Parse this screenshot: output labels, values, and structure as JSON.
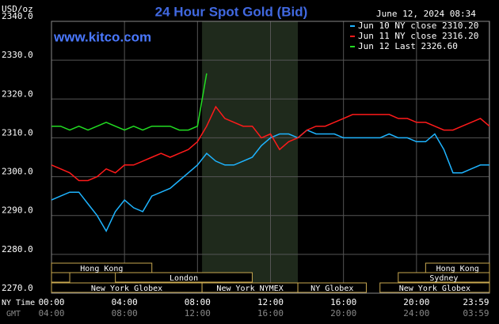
{
  "chart_data": {
    "type": "line",
    "title": "24 Hour Spot Gold (Bid)",
    "subtitle": "June 12, 2024 08:34",
    "y_label": "USD/oz",
    "source": "www.kitco.com",
    "x_label": "NY Time",
    "x2_label": "GMT",
    "x2_tick_labels": [
      "04:00",
      "08:00",
      "12:00",
      "16:00",
      "20:00",
      "24:00",
      "03:59"
    ],
    "xlim": [
      0,
      24
    ],
    "xticks": [
      {
        "value": 0,
        "label": "00:00"
      },
      {
        "value": 4,
        "label": "04:00"
      },
      {
        "value": 8,
        "label": "08:00"
      },
      {
        "value": 12,
        "label": "12:00"
      },
      {
        "value": 16,
        "label": "16:00"
      },
      {
        "value": 20,
        "label": "20:00"
      },
      {
        "value": 23.98,
        "label": "23:59"
      }
    ],
    "ylim": [
      2270,
      2340
    ],
    "yticks": [
      {
        "value": 2270,
        "label": "2270.0"
      },
      {
        "value": 2280,
        "label": "2280.0"
      },
      {
        "value": 2290,
        "label": "2290.0"
      },
      {
        "value": 2300,
        "label": "2300.0"
      },
      {
        "value": 2310,
        "label": "2310.0"
      },
      {
        "value": 2320,
        "label": "2320.0"
      },
      {
        "value": 2330,
        "label": "2330.0"
      },
      {
        "value": 2340,
        "label": "2340.0"
      }
    ],
    "grid": true,
    "x": [
      0,
      0.5,
      1,
      1.5,
      2,
      2.5,
      3,
      3.5,
      4,
      4.5,
      5,
      5.5,
      6,
      6.5,
      7,
      7.5,
      8,
      8.5,
      9,
      9.5,
      10,
      10.5,
      11,
      11.5,
      12,
      12.5,
      13,
      13.5,
      14,
      14.5,
      15,
      15.5,
      16,
      16.5,
      17,
      17.5,
      18,
      18.5,
      19,
      19.5,
      20,
      20.5,
      21,
      21.5,
      22,
      22.5,
      23,
      23.5,
      24
    ],
    "series": [
      {
        "name": "Jun 10 NY close 2310.20",
        "color": "#1eb4ff",
        "values": [
          2294,
          2295,
          2296,
          2296,
          2293,
          2290,
          2286,
          2291,
          2294,
          2292,
          2291,
          2295,
          2296,
          2297,
          2299,
          2301,
          2303,
          2306,
          2304,
          2303,
          2303,
          2304,
          2305,
          2308,
          2310,
          2311,
          2311,
          2310,
          2312,
          2311,
          2311,
          2311,
          2310,
          2310,
          2310,
          2310,
          2310,
          2311,
          2310,
          2310,
          2309,
          2309,
          2311,
          2307,
          2301,
          2301,
          2302,
          2303,
          2303
        ]
      },
      {
        "name": "Jun 11 NY close 2316.20",
        "color": "#ff1a1a",
        "values": [
          2303,
          2302,
          2301,
          2299,
          2299,
          2300,
          2302,
          2301,
          2303,
          2303,
          2304,
          2305,
          2306,
          2305,
          2306,
          2307,
          2309,
          2313,
          2318,
          2315,
          2314,
          2313,
          2313,
          2310,
          2311,
          2307,
          2309,
          2310,
          2312,
          2313,
          2313,
          2314,
          2315,
          2316,
          2316,
          2316,
          2316,
          2316,
          2315,
          2315,
          2314,
          2314,
          2313,
          2312,
          2312,
          2313,
          2314,
          2315,
          2313
        ]
      },
      {
        "name": "Jun 12 Last 2326.60",
        "color": "#22dd22",
        "values": [
          2313,
          2313,
          2312,
          2313,
          2312,
          2313,
          2314,
          2313,
          2312,
          2313,
          2312,
          2313,
          2313,
          2313,
          2312,
          2312,
          2313,
          2326.6,
          null,
          null,
          null,
          null,
          null,
          null,
          null,
          null,
          null,
          null,
          null,
          null,
          null,
          null,
          null,
          null,
          null,
          null,
          null,
          null,
          null,
          null,
          null,
          null,
          null,
          null,
          null,
          null,
          null,
          null,
          null
        ]
      }
    ],
    "sessions": [
      {
        "label": "Hong Kong",
        "row": 0,
        "start": 0,
        "end": 5.5
      },
      {
        "label": "Hong Kong",
        "row": 0,
        "start": 20.5,
        "end": 24
      },
      {
        "label": null,
        "row": 1,
        "start": 0,
        "end": 1
      },
      {
        "label": "London",
        "row": 1,
        "start": 3.5,
        "end": 11
      },
      {
        "label": "Sydney",
        "row": 1,
        "start": 19,
        "end": 24
      },
      {
        "label": "New York Globex",
        "row": 2,
        "start": 0,
        "end": 8.25
      },
      {
        "label": "New York NYMEX",
        "row": 2,
        "start": 8.25,
        "end": 13.5
      },
      {
        "label": "NY Globex",
        "row": 2,
        "start": 13.5,
        "end": 17.25
      },
      {
        "label": "New York Globex",
        "row": 2,
        "start": 18,
        "end": 24
      }
    ],
    "highlight_session": 6
  }
}
